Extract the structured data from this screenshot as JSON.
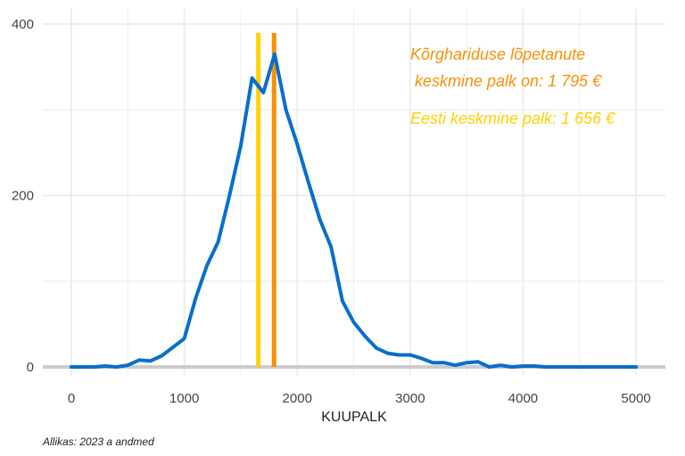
{
  "chart_data": {
    "type": "line",
    "title": "",
    "xlabel": "KUUPALK",
    "ylabel": "",
    "xlim": [
      -250,
      5250
    ],
    "ylim": [
      0,
      400
    ],
    "x_ticks": [
      0,
      1000,
      2000,
      3000,
      4000,
      5000
    ],
    "y_ticks": [
      0,
      200,
      400
    ],
    "grid": true,
    "series": [
      {
        "color": "#0a6ecc",
        "x": [
          0,
          100,
          200,
          300,
          400,
          500,
          600,
          700,
          800,
          900,
          1000,
          1100,
          1200,
          1300,
          1400,
          1500,
          1600,
          1700,
          1800,
          1900,
          2000,
          2100,
          2200,
          2300,
          2400,
          2500,
          2600,
          2700,
          2800,
          2900,
          3000,
          3100,
          3200,
          3300,
          3400,
          3500,
          3600,
          3700,
          3800,
          3900,
          4000,
          4100,
          4200,
          4300,
          4400,
          4500,
          4600,
          4700,
          4800,
          4900,
          5000
        ],
        "y": [
          0,
          0,
          0,
          1,
          0,
          2,
          8,
          7,
          13,
          23,
          33,
          80,
          118,
          146,
          200,
          258,
          337,
          320,
          365,
          300,
          260,
          215,
          172,
          140,
          77,
          52,
          36,
          22,
          16,
          14,
          14,
          10,
          5,
          5,
          2,
          5,
          6,
          0,
          2,
          0,
          1,
          1,
          0,
          0,
          0,
          0,
          0,
          0,
          0,
          0,
          0
        ]
      }
    ],
    "vlines": [
      {
        "x": 1656,
        "color": "#ffd200"
      },
      {
        "x": 1795,
        "color": "#f7900a"
      }
    ],
    "annotations": [
      {
        "lines": [
          "Kõrghariduse lõpetanute",
          " keskmine palk on: 1 795 €"
        ],
        "color": "#f7900a"
      },
      {
        "lines": [
          "Eesti keskmine palk: 1 656 €"
        ],
        "color": "#ffd200"
      }
    ],
    "caption": "Allikas: 2023 a andmed",
    "colors": {
      "grid": "#ebebeb",
      "baseline": "#cccccc"
    }
  }
}
